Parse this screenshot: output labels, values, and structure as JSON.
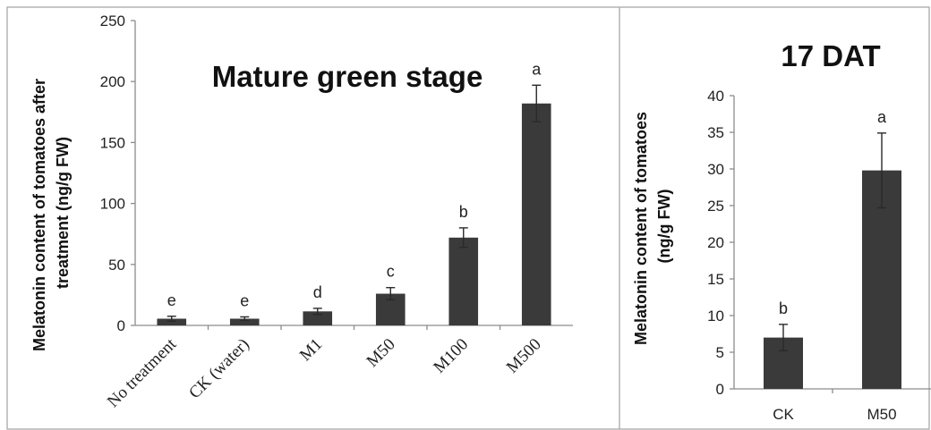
{
  "chart_data": [
    {
      "type": "bar",
      "title": "Mature green stage",
      "ylabel": [
        "Melatonin content of tomatoes after",
        "treatment  (ng/g FW)"
      ],
      "categories": [
        "No treatment",
        "CK (water)",
        "M1",
        "M50",
        "M100",
        "M500"
      ],
      "values": [
        5.5,
        5.5,
        11.5,
        26,
        72,
        182
      ],
      "errors": [
        2,
        1.5,
        2.5,
        5,
        8,
        15
      ],
      "annotations": [
        "e",
        "e",
        "d",
        "c",
        "b",
        "a"
      ],
      "ylim": [
        0,
        250
      ],
      "yticks": [
        0,
        50,
        100,
        150,
        200,
        250
      ],
      "bar_color": "#3a3a3a",
      "grid": false
    },
    {
      "type": "bar",
      "title": "17 DAT",
      "ylabel": [
        "Melatonin content of tomatoes",
        "(ng/g FW)"
      ],
      "categories": [
        "CK",
        "M50"
      ],
      "values": [
        7,
        29.8
      ],
      "errors": [
        1.8,
        5.1
      ],
      "annotations": [
        "b",
        "a"
      ],
      "ylim": [
        0,
        40
      ],
      "yticks": [
        0,
        5,
        10,
        15,
        20,
        25,
        30,
        35,
        40
      ],
      "bar_color": "#3a3a3a",
      "grid": false
    }
  ]
}
